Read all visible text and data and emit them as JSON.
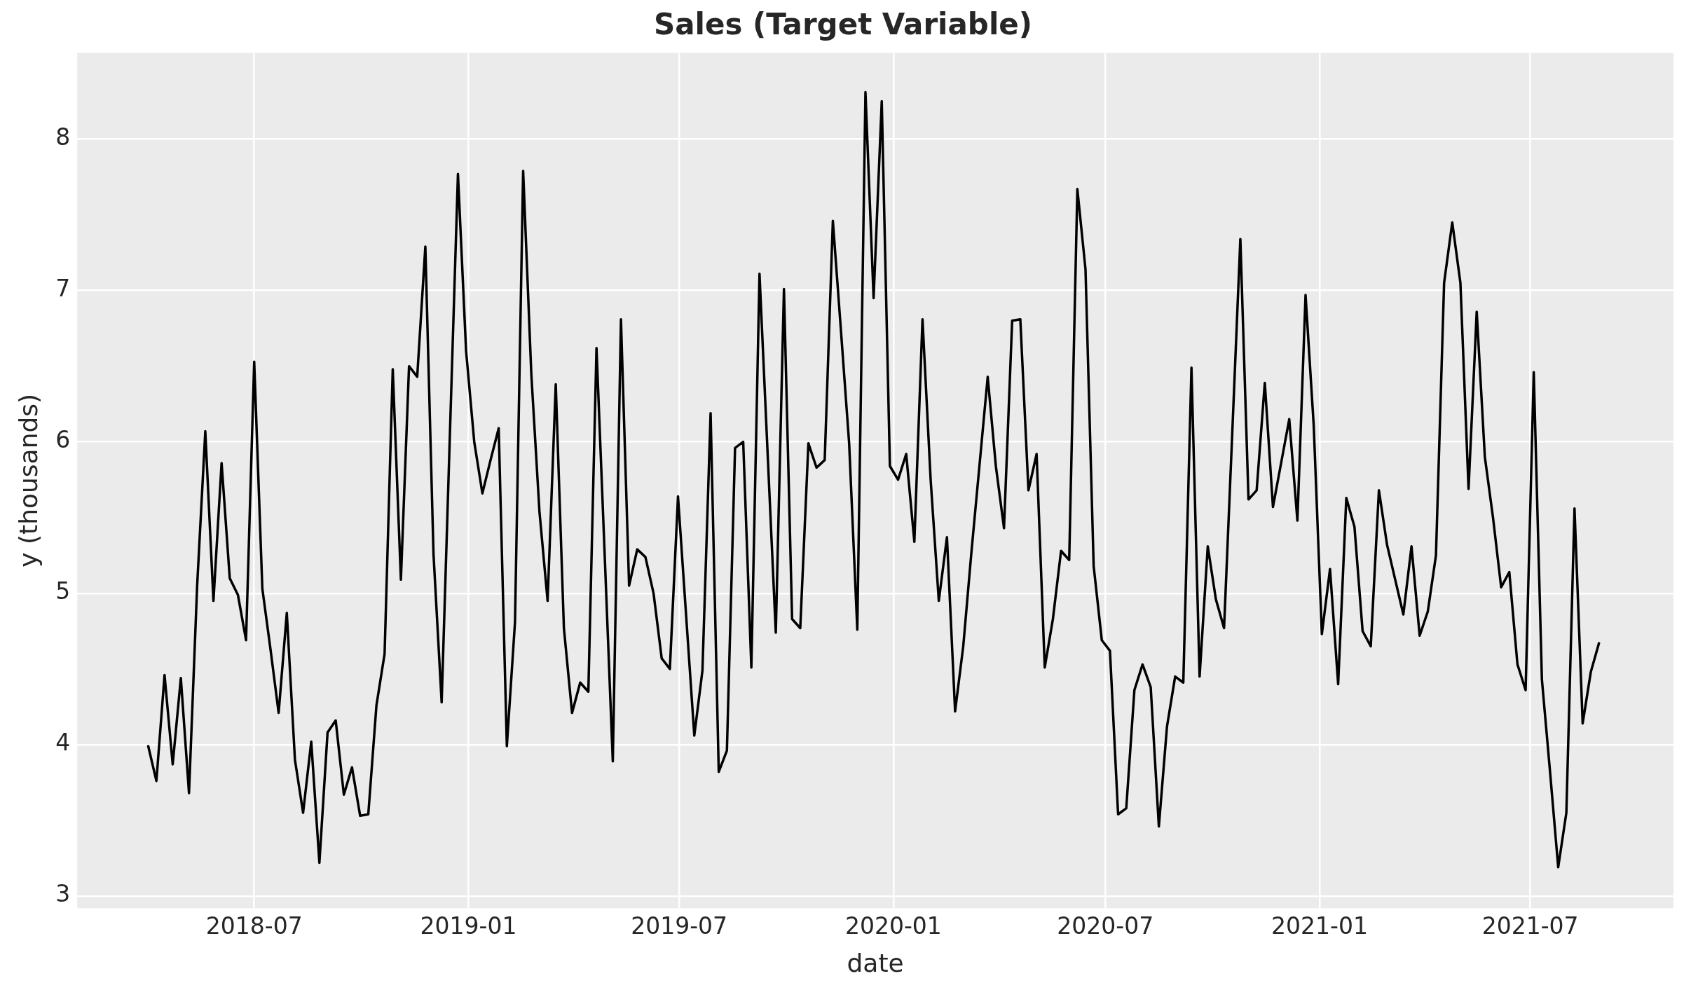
{
  "chart_data": {
    "type": "line",
    "title": "Sales (Target Variable)",
    "xlabel": "date",
    "ylabel": "y (thousands)",
    "x": [
      "2018-04-01",
      "2018-04-08",
      "2018-04-15",
      "2018-04-22",
      "2018-04-29",
      "2018-05-06",
      "2018-05-13",
      "2018-05-20",
      "2018-05-27",
      "2018-06-03",
      "2018-06-10",
      "2018-06-17",
      "2018-06-24",
      "2018-07-01",
      "2018-07-08",
      "2018-07-15",
      "2018-07-22",
      "2018-07-29",
      "2018-08-05",
      "2018-08-12",
      "2018-08-19",
      "2018-08-26",
      "2018-09-02",
      "2018-09-09",
      "2018-09-16",
      "2018-09-23",
      "2018-09-30",
      "2018-10-07",
      "2018-10-14",
      "2018-10-21",
      "2018-10-28",
      "2018-11-04",
      "2018-11-11",
      "2018-11-18",
      "2018-11-25",
      "2018-12-02",
      "2018-12-09",
      "2018-12-16",
      "2018-12-23",
      "2018-12-30",
      "2019-01-06",
      "2019-01-13",
      "2019-01-20",
      "2019-01-27",
      "2019-02-03",
      "2019-02-10",
      "2019-02-17",
      "2019-02-24",
      "2019-03-03",
      "2019-03-10",
      "2019-03-17",
      "2019-03-24",
      "2019-03-31",
      "2019-04-07",
      "2019-04-14",
      "2019-04-21",
      "2019-04-28",
      "2019-05-05",
      "2019-05-12",
      "2019-05-19",
      "2019-05-26",
      "2019-06-02",
      "2019-06-09",
      "2019-06-16",
      "2019-06-23",
      "2019-06-30",
      "2019-07-07",
      "2019-07-14",
      "2019-07-21",
      "2019-07-28",
      "2019-08-04",
      "2019-08-11",
      "2019-08-18",
      "2019-08-25",
      "2019-09-01",
      "2019-09-08",
      "2019-09-15",
      "2019-09-22",
      "2019-09-29",
      "2019-10-06",
      "2019-10-13",
      "2019-10-20",
      "2019-10-27",
      "2019-11-03",
      "2019-11-10",
      "2019-11-17",
      "2019-11-24",
      "2019-12-01",
      "2019-12-08",
      "2019-12-15",
      "2019-12-22",
      "2019-12-29",
      "2020-01-05",
      "2020-01-12",
      "2020-01-19",
      "2020-01-26",
      "2020-02-02",
      "2020-02-09",
      "2020-02-16",
      "2020-02-23",
      "2020-03-01",
      "2020-03-08",
      "2020-03-15",
      "2020-03-22",
      "2020-03-29",
      "2020-04-05",
      "2020-04-12",
      "2020-04-19",
      "2020-04-26",
      "2020-05-03",
      "2020-05-10",
      "2020-05-17",
      "2020-05-24",
      "2020-05-31",
      "2020-06-07",
      "2020-06-14",
      "2020-06-21",
      "2020-06-28",
      "2020-07-05",
      "2020-07-12",
      "2020-07-19",
      "2020-07-26",
      "2020-08-02",
      "2020-08-09",
      "2020-08-16",
      "2020-08-23",
      "2020-08-30",
      "2020-09-06",
      "2020-09-13",
      "2020-09-20",
      "2020-09-27",
      "2020-10-04",
      "2020-10-11",
      "2020-10-18",
      "2020-10-25",
      "2020-11-01",
      "2020-11-08",
      "2020-11-15",
      "2020-11-22",
      "2020-11-29",
      "2020-12-06",
      "2020-12-13",
      "2020-12-20",
      "2020-12-27",
      "2021-01-03",
      "2021-01-10",
      "2021-01-17",
      "2021-01-24",
      "2021-01-31",
      "2021-02-07",
      "2021-02-14",
      "2021-02-21",
      "2021-02-28",
      "2021-03-07",
      "2021-03-14",
      "2021-03-21",
      "2021-03-28",
      "2021-04-04",
      "2021-04-11",
      "2021-04-18",
      "2021-04-25",
      "2021-05-02",
      "2021-05-09",
      "2021-05-16",
      "2021-05-23",
      "2021-05-30",
      "2021-06-06",
      "2021-06-13",
      "2021-06-20",
      "2021-06-27",
      "2021-07-04",
      "2021-07-11",
      "2021-07-18",
      "2021-07-25",
      "2021-08-01",
      "2021-08-08",
      "2021-08-15",
      "2021-08-22",
      "2021-08-29"
    ],
    "series": [
      {
        "color": "#000000",
        "values": [
          3.99,
          3.76,
          4.46,
          3.87,
          4.44,
          3.68,
          5.05,
          6.07,
          4.95,
          5.86,
          5.1,
          4.99,
          4.69,
          6.53,
          5.03,
          4.63,
          4.21,
          4.87,
          3.9,
          3.55,
          4.02,
          3.22,
          4.08,
          4.16,
          3.67,
          3.85,
          3.53,
          3.54,
          4.26,
          4.6,
          6.48,
          5.09,
          6.5,
          6.43,
          7.29,
          5.26,
          4.28,
          6.03,
          7.77,
          6.6,
          6.0,
          5.66,
          5.88,
          6.09,
          3.99,
          4.81,
          7.79,
          6.45,
          5.54,
          4.95,
          6.38,
          4.77,
          4.21,
          4.41,
          4.35,
          6.62,
          5.26,
          3.89,
          6.81,
          5.05,
          5.29,
          5.24,
          5.0,
          4.57,
          4.5,
          5.64,
          4.85,
          4.06,
          4.49,
          6.19,
          3.82,
          3.96,
          5.96,
          6.0,
          4.51,
          7.11,
          5.92,
          4.74,
          7.01,
          4.83,
          4.77,
          5.99,
          5.83,
          5.88,
          7.46,
          6.73,
          5.99,
          4.76,
          8.31,
          6.95,
          8.25,
          5.84,
          5.75,
          5.92,
          5.34,
          6.81,
          5.75,
          4.95,
          5.37,
          4.22,
          4.65,
          5.27,
          5.85,
          6.43,
          5.84,
          5.43,
          6.8,
          6.81,
          5.68,
          5.92,
          4.51,
          4.83,
          5.28,
          5.22,
          7.67,
          7.14,
          5.18,
          4.69,
          4.62,
          3.54,
          3.58,
          4.36,
          4.53,
          4.38,
          3.46,
          4.12,
          4.45,
          4.41,
          6.49,
          4.45,
          5.31,
          4.96,
          4.77,
          6.05,
          7.34,
          5.62,
          5.68,
          6.39,
          5.57,
          5.86,
          6.15,
          5.48,
          6.97,
          6.11,
          4.73,
          5.16,
          4.4,
          5.63,
          5.44,
          4.75,
          4.65,
          5.68,
          5.32,
          5.09,
          4.86,
          5.31,
          4.72,
          4.88,
          5.25,
          7.05,
          7.45,
          7.05,
          5.69,
          6.86,
          5.9,
          5.5,
          5.04,
          5.14,
          4.53,
          4.36,
          6.46,
          4.43,
          3.82,
          3.19,
          3.55,
          5.56,
          4.14,
          4.48,
          4.67
        ]
      }
    ],
    "xlim": [
      "2018-01-30",
      "2021-11-01"
    ],
    "xticks": [
      {
        "value": "2018-07-01",
        "label": "2018-07"
      },
      {
        "value": "2019-01-01",
        "label": "2019-01"
      },
      {
        "value": "2019-07-01",
        "label": "2019-07"
      },
      {
        "value": "2020-01-01",
        "label": "2020-01"
      },
      {
        "value": "2020-07-01",
        "label": "2020-07"
      },
      {
        "value": "2021-01-01",
        "label": "2021-01"
      },
      {
        "value": "2021-07-01",
        "label": "2021-07"
      }
    ],
    "ylim": [
      2.92,
      8.57
    ],
    "yticks": [
      3,
      4,
      5,
      6,
      7,
      8
    ],
    "grid": true,
    "legend": false,
    "marker": "none",
    "line_style": "solid"
  }
}
